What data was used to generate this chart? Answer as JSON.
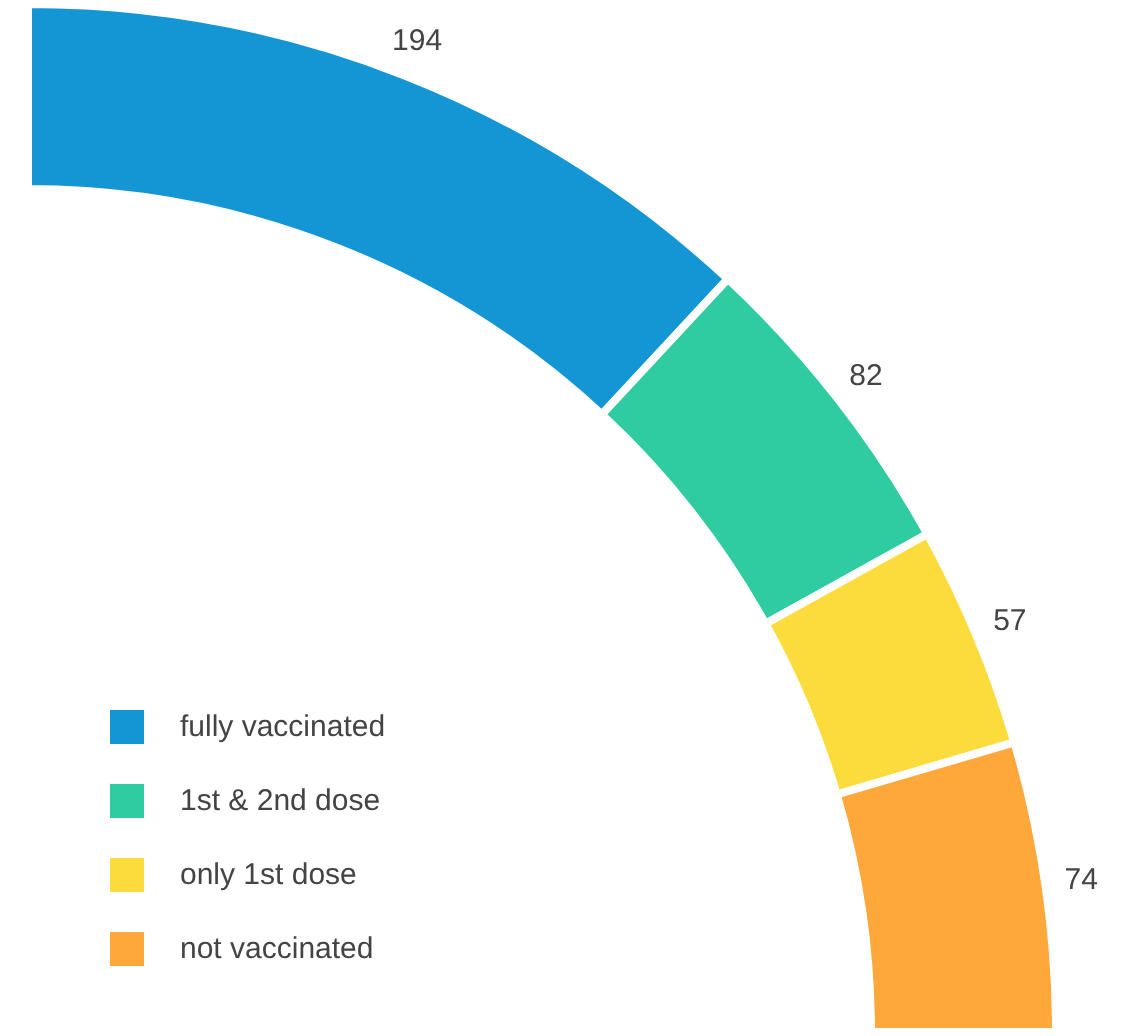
{
  "chart_data": {
    "type": "donut",
    "categories": [
      "fully vaccinated",
      "1st & 2nd dose",
      "only 1st dose",
      "not vaccinated"
    ],
    "values": [
      194,
      82,
      57,
      74
    ],
    "colors": [
      "#1496d4",
      "#2ecca0",
      "#fcdc3c",
      "#fea73a"
    ],
    "data_labels": true,
    "legend": "bottom left"
  }
}
